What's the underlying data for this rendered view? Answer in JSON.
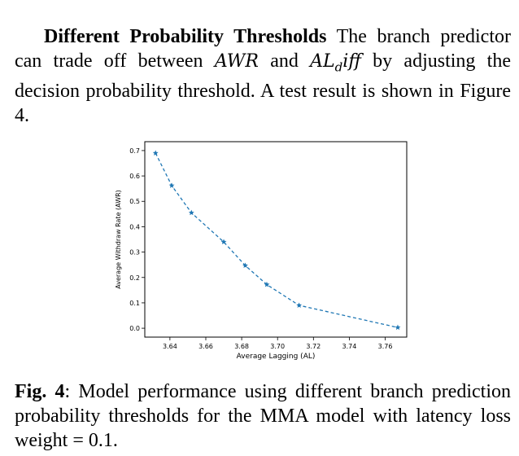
{
  "paragraph": {
    "heading": "Different Probability Thresholds",
    "text_before_math": " The branch predictor can trade off between ",
    "math_awr": "AWR",
    "text_and": " and ",
    "math_al": "AL",
    "math_al_sub": "d",
    "math_al_rest": "iff",
    "text_after_math": " by adjusting the decision probability threshold.  A test result is shown in Figure 4."
  },
  "caption": {
    "label": "Fig. 4",
    "text": ": Model performance using different branch prediction probability thresholds for the MMA model with latency loss weight = 0.1."
  },
  "chart_data": {
    "type": "line",
    "xlabel": "Average Lagging (AL)",
    "ylabel": "Average Withdraw Rate (AWR)",
    "xlim": [
      3.626,
      3.772
    ],
    "ylim": [
      -0.035,
      0.735
    ],
    "xticks": [
      "3.64",
      "3.66",
      "3.68",
      "3.70",
      "3.72",
      "3.74",
      "3.76"
    ],
    "yticks": [
      "0.0",
      "0.1",
      "0.2",
      "0.3",
      "0.4",
      "0.5",
      "0.6",
      "0.7"
    ],
    "line_style": "dashed",
    "marker": "star",
    "color": "#1f77b4",
    "grid": false,
    "series": [
      {
        "x": [
          3.632,
          3.641,
          3.652,
          3.67,
          3.682,
          3.694,
          3.712,
          3.767
        ],
        "y": [
          0.69,
          0.562,
          0.455,
          0.34,
          0.247,
          0.172,
          0.09,
          0.003
        ]
      }
    ]
  }
}
